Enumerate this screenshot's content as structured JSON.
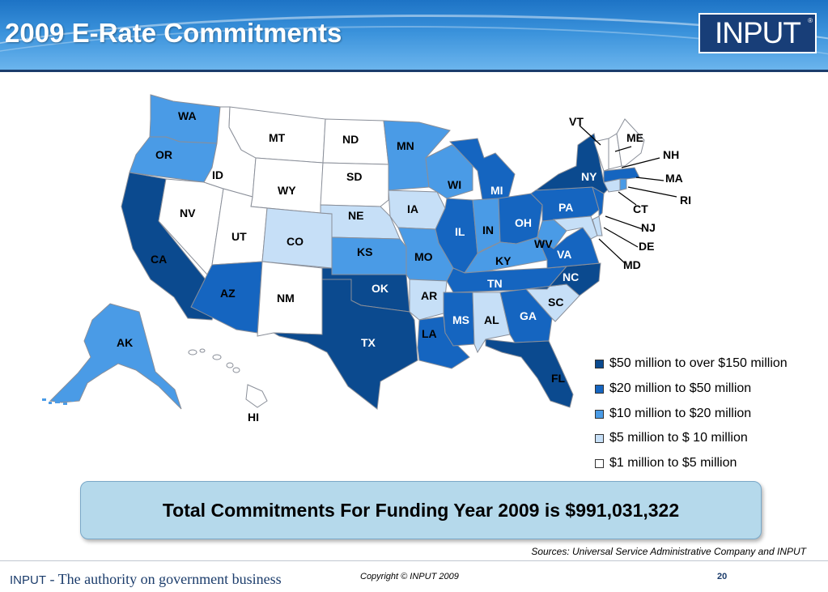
{
  "header": {
    "title": "2009 E-Rate Commitments",
    "logo_text": "INPUT",
    "logo_mark": "®"
  },
  "colors": {
    "tier_50_150": "#0b4a8f",
    "tier_20_50": "#1565c0",
    "tier_10_20": "#4a9be6",
    "tier_5_10": "#c6dff7",
    "tier_1_5": "#ffffff",
    "accent": "#1b3c6b"
  },
  "legend": [
    {
      "label": "$50 million  to over $150 million",
      "tier": "tier_50_150"
    },
    {
      "label": "$20 million to $50 million",
      "tier": "tier_20_50"
    },
    {
      "label": "$10 million to $20 million",
      "tier": "tier_10_20"
    },
    {
      "label": "$5 million to $ 10 million",
      "tier": "tier_5_10"
    },
    {
      "label": "$1 million to $5 million",
      "tier": "tier_1_5"
    }
  ],
  "states": {
    "WA": "tier_10_20",
    "OR": "tier_10_20",
    "CA": "tier_50_150",
    "ID": "tier_1_5",
    "NV": "tier_1_5",
    "MT": "tier_1_5",
    "WY": "tier_1_5",
    "UT": "tier_1_5",
    "CO": "tier_5_10",
    "AZ": "tier_20_50",
    "NM": "tier_1_5",
    "ND": "tier_1_5",
    "SD": "tier_1_5",
    "NE": "tier_5_10",
    "KS": "tier_10_20",
    "OK": "tier_50_150",
    "TX": "tier_50_150",
    "MN": "tier_10_20",
    "IA": "tier_5_10",
    "MO": "tier_10_20",
    "AR": "tier_5_10",
    "LA": "tier_20_50",
    "WI": "tier_10_20",
    "IL": "tier_20_50",
    "MI": "tier_20_50",
    "IN": "tier_10_20",
    "OH": "tier_20_50",
    "KY": "tier_10_20",
    "TN": "tier_20_50",
    "MS": "tier_20_50",
    "AL": "tier_5_10",
    "GA": "tier_20_50",
    "FL": "tier_50_150",
    "SC": "tier_5_10",
    "NC": "tier_50_150",
    "VA": "tier_20_50",
    "WV": "tier_10_20",
    "PA": "tier_20_50",
    "NY": "tier_50_150",
    "VT": "tier_1_5",
    "NH": "tier_1_5",
    "ME": "tier_1_5",
    "MA": "tier_20_50",
    "RI": "tier_10_20",
    "CT": "tier_5_10",
    "NJ": "tier_20_50",
    "DE": "tier_5_10",
    "MD": "tier_5_10",
    "AK": "tier_10_20",
    "HI": "tier_1_5"
  },
  "total": "Total Commitments For Funding Year 2009 is $991,031,322",
  "sources": "Sources:  Universal Service Administrative Company and INPUT",
  "footer": {
    "brand": "INPUT",
    "tagline": " - The authority on government business",
    "copyright": "Copyright © INPUT 2009",
    "page": "20"
  }
}
